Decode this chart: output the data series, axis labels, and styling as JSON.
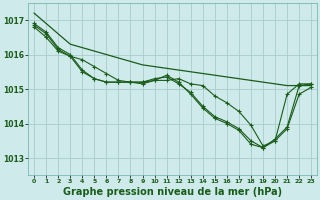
{
  "background_color": "#ceeaea",
  "grid_color": "#a8cccc",
  "line_color": "#1a5c1a",
  "xlabel": "Graphe pression niveau de la mer (hPa)",
  "xlabel_fontsize": 7,
  "ylim": [
    1012.5,
    1017.5
  ],
  "xlim": [
    -0.5,
    23.5
  ],
  "yticks": [
    1013,
    1014,
    1015,
    1016,
    1017
  ],
  "xticks": [
    0,
    1,
    2,
    3,
    4,
    5,
    6,
    7,
    8,
    9,
    10,
    11,
    12,
    13,
    14,
    15,
    16,
    17,
    18,
    19,
    20,
    21,
    22,
    23
  ],
  "series1_nomark": {
    "x": [
      0,
      1,
      2,
      3,
      4,
      5,
      6,
      7,
      8,
      9,
      10,
      11,
      12,
      13,
      14,
      15,
      16,
      17,
      18,
      19,
      20,
      21,
      22,
      23
    ],
    "y": [
      1017.2,
      1016.9,
      1016.6,
      1016.3,
      1016.2,
      1016.1,
      1016.0,
      1015.9,
      1015.8,
      1015.7,
      1015.65,
      1015.6,
      1015.55,
      1015.5,
      1015.45,
      1015.4,
      1015.35,
      1015.3,
      1015.25,
      1015.2,
      1015.15,
      1015.1,
      1015.1,
      1015.1
    ]
  },
  "series2": {
    "x": [
      0,
      1,
      2,
      3,
      4,
      5,
      6,
      7,
      8,
      9,
      10,
      11,
      12,
      13,
      14,
      15,
      16,
      17,
      18,
      19,
      20,
      21,
      22,
      23
    ],
    "y": [
      1016.9,
      1016.65,
      1016.2,
      1016.0,
      1015.55,
      1015.3,
      1015.2,
      1015.2,
      1015.2,
      1015.2,
      1015.3,
      1015.35,
      1015.15,
      1014.9,
      1014.5,
      1014.2,
      1014.05,
      1013.85,
      1013.5,
      1013.3,
      1013.55,
      1013.9,
      1015.1,
      1015.15
    ]
  },
  "series3": {
    "x": [
      0,
      1,
      2,
      3,
      4,
      5,
      6,
      7,
      8,
      9,
      10,
      11,
      12,
      13,
      14,
      15,
      16,
      17,
      18,
      19,
      20,
      21,
      22,
      23
    ],
    "y": [
      1016.85,
      1016.6,
      1016.15,
      1015.95,
      1015.5,
      1015.3,
      1015.2,
      1015.2,
      1015.2,
      1015.15,
      1015.25,
      1015.4,
      1015.2,
      1014.85,
      1014.45,
      1014.15,
      1014.0,
      1013.8,
      1013.4,
      1013.3,
      1013.5,
      1013.85,
      1014.85,
      1015.05
    ]
  },
  "series4": {
    "x": [
      0,
      1,
      2,
      3,
      4,
      5,
      6,
      7,
      8,
      9,
      10,
      11,
      12,
      13,
      14,
      15,
      16,
      17,
      18,
      19,
      20,
      21,
      22,
      23
    ],
    "y": [
      1016.8,
      1016.5,
      1016.1,
      1015.95,
      1015.85,
      1015.65,
      1015.45,
      1015.25,
      1015.2,
      1015.2,
      1015.25,
      1015.25,
      1015.3,
      1015.15,
      1015.1,
      1014.8,
      1014.6,
      1014.35,
      1013.95,
      1013.35,
      1013.5,
      1014.85,
      1015.15,
      1015.15
    ]
  }
}
